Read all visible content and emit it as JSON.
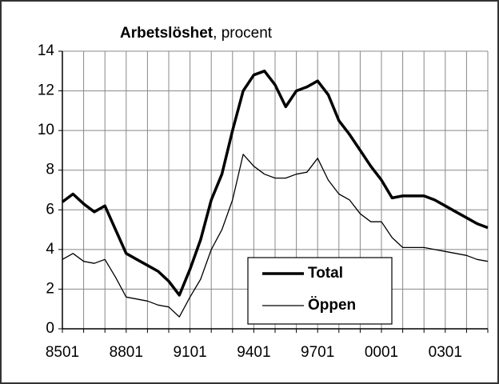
{
  "chart_data": {
    "type": "line",
    "title": "Arbetslöshet",
    "title_suffix": ", procent",
    "categories": [
      "8501",
      null,
      null,
      null,
      null,
      null,
      "8801",
      null,
      null,
      null,
      null,
      null,
      "9101",
      null,
      null,
      null,
      null,
      null,
      "9401",
      null,
      null,
      null,
      null,
      null,
      "9701",
      null,
      null,
      null,
      null,
      null,
      "0001",
      null,
      null,
      null,
      null,
      null,
      "0301",
      null,
      null,
      null,
      null
    ],
    "series": [
      {
        "name": "Total",
        "color": "#000000",
        "width": 3.5,
        "values": [
          6.4,
          6.8,
          6.3,
          5.9,
          6.2,
          5.0,
          3.8,
          3.5,
          3.2,
          2.9,
          2.4,
          1.7,
          3.0,
          4.5,
          6.5,
          7.8,
          10.0,
          12.0,
          12.8,
          13.0,
          12.3,
          11.2,
          12.0,
          12.2,
          12.5,
          11.8,
          10.5,
          9.8,
          9.0,
          8.2,
          7.5,
          6.6,
          6.7,
          6.7,
          6.7,
          6.5,
          6.2,
          5.9,
          5.6,
          5.3,
          5.1
        ]
      },
      {
        "name": "Öppen",
        "color": "#000000",
        "width": 1.3,
        "values": [
          3.5,
          3.8,
          3.4,
          3.3,
          3.5,
          2.6,
          1.6,
          1.5,
          1.4,
          1.2,
          1.1,
          0.6,
          1.6,
          2.5,
          4.0,
          5.0,
          6.5,
          8.8,
          8.2,
          7.8,
          7.6,
          7.6,
          7.8,
          7.9,
          8.6,
          7.5,
          6.8,
          6.5,
          5.8,
          5.4,
          5.4,
          4.6,
          4.1,
          4.1,
          4.1,
          4.0,
          3.9,
          3.8,
          3.7,
          3.5,
          3.4
        ]
      }
    ],
    "ylim": [
      0,
      14
    ],
    "yticks": [
      0,
      2,
      4,
      6,
      8,
      10,
      12,
      14
    ],
    "grid": true,
    "legend": "lower center"
  }
}
